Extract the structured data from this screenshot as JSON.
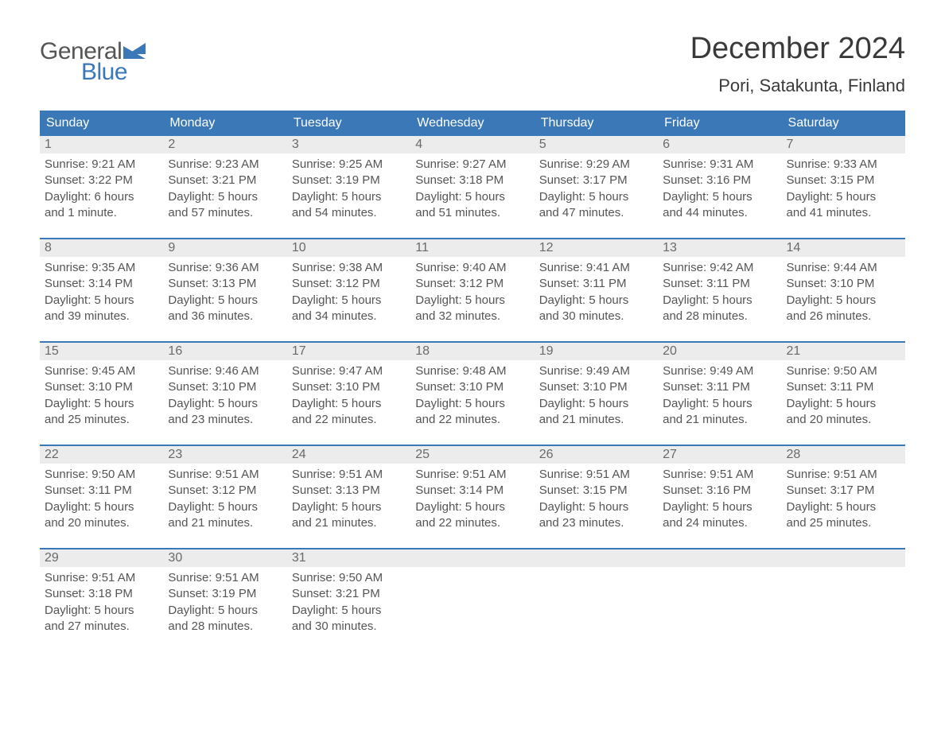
{
  "brand": {
    "general": "General",
    "blue": "Blue",
    "accent_color": "#3b78b8",
    "text_color": "#555555"
  },
  "header": {
    "month_title": "December 2024",
    "location": "Pori, Satakunta, Finland"
  },
  "calendar": {
    "weekday_bg": "#3b78b8",
    "daynum_bg": "#ececec",
    "weekdays": [
      "Sunday",
      "Monday",
      "Tuesday",
      "Wednesday",
      "Thursday",
      "Friday",
      "Saturday"
    ],
    "weeks": [
      [
        {
          "n": "1",
          "sunrise": "Sunrise: 9:21 AM",
          "sunset": "Sunset: 3:22 PM",
          "dl1": "Daylight: 6 hours",
          "dl2": "and 1 minute."
        },
        {
          "n": "2",
          "sunrise": "Sunrise: 9:23 AM",
          "sunset": "Sunset: 3:21 PM",
          "dl1": "Daylight: 5 hours",
          "dl2": "and 57 minutes."
        },
        {
          "n": "3",
          "sunrise": "Sunrise: 9:25 AM",
          "sunset": "Sunset: 3:19 PM",
          "dl1": "Daylight: 5 hours",
          "dl2": "and 54 minutes."
        },
        {
          "n": "4",
          "sunrise": "Sunrise: 9:27 AM",
          "sunset": "Sunset: 3:18 PM",
          "dl1": "Daylight: 5 hours",
          "dl2": "and 51 minutes."
        },
        {
          "n": "5",
          "sunrise": "Sunrise: 9:29 AM",
          "sunset": "Sunset: 3:17 PM",
          "dl1": "Daylight: 5 hours",
          "dl2": "and 47 minutes."
        },
        {
          "n": "6",
          "sunrise": "Sunrise: 9:31 AM",
          "sunset": "Sunset: 3:16 PM",
          "dl1": "Daylight: 5 hours",
          "dl2": "and 44 minutes."
        },
        {
          "n": "7",
          "sunrise": "Sunrise: 9:33 AM",
          "sunset": "Sunset: 3:15 PM",
          "dl1": "Daylight: 5 hours",
          "dl2": "and 41 minutes."
        }
      ],
      [
        {
          "n": "8",
          "sunrise": "Sunrise: 9:35 AM",
          "sunset": "Sunset: 3:14 PM",
          "dl1": "Daylight: 5 hours",
          "dl2": "and 39 minutes."
        },
        {
          "n": "9",
          "sunrise": "Sunrise: 9:36 AM",
          "sunset": "Sunset: 3:13 PM",
          "dl1": "Daylight: 5 hours",
          "dl2": "and 36 minutes."
        },
        {
          "n": "10",
          "sunrise": "Sunrise: 9:38 AM",
          "sunset": "Sunset: 3:12 PM",
          "dl1": "Daylight: 5 hours",
          "dl2": "and 34 minutes."
        },
        {
          "n": "11",
          "sunrise": "Sunrise: 9:40 AM",
          "sunset": "Sunset: 3:12 PM",
          "dl1": "Daylight: 5 hours",
          "dl2": "and 32 minutes."
        },
        {
          "n": "12",
          "sunrise": "Sunrise: 9:41 AM",
          "sunset": "Sunset: 3:11 PM",
          "dl1": "Daylight: 5 hours",
          "dl2": "and 30 minutes."
        },
        {
          "n": "13",
          "sunrise": "Sunrise: 9:42 AM",
          "sunset": "Sunset: 3:11 PM",
          "dl1": "Daylight: 5 hours",
          "dl2": "and 28 minutes."
        },
        {
          "n": "14",
          "sunrise": "Sunrise: 9:44 AM",
          "sunset": "Sunset: 3:10 PM",
          "dl1": "Daylight: 5 hours",
          "dl2": "and 26 minutes."
        }
      ],
      [
        {
          "n": "15",
          "sunrise": "Sunrise: 9:45 AM",
          "sunset": "Sunset: 3:10 PM",
          "dl1": "Daylight: 5 hours",
          "dl2": "and 25 minutes."
        },
        {
          "n": "16",
          "sunrise": "Sunrise: 9:46 AM",
          "sunset": "Sunset: 3:10 PM",
          "dl1": "Daylight: 5 hours",
          "dl2": "and 23 minutes."
        },
        {
          "n": "17",
          "sunrise": "Sunrise: 9:47 AM",
          "sunset": "Sunset: 3:10 PM",
          "dl1": "Daylight: 5 hours",
          "dl2": "and 22 minutes."
        },
        {
          "n": "18",
          "sunrise": "Sunrise: 9:48 AM",
          "sunset": "Sunset: 3:10 PM",
          "dl1": "Daylight: 5 hours",
          "dl2": "and 22 minutes."
        },
        {
          "n": "19",
          "sunrise": "Sunrise: 9:49 AM",
          "sunset": "Sunset: 3:10 PM",
          "dl1": "Daylight: 5 hours",
          "dl2": "and 21 minutes."
        },
        {
          "n": "20",
          "sunrise": "Sunrise: 9:49 AM",
          "sunset": "Sunset: 3:11 PM",
          "dl1": "Daylight: 5 hours",
          "dl2": "and 21 minutes."
        },
        {
          "n": "21",
          "sunrise": "Sunrise: 9:50 AM",
          "sunset": "Sunset: 3:11 PM",
          "dl1": "Daylight: 5 hours",
          "dl2": "and 20 minutes."
        }
      ],
      [
        {
          "n": "22",
          "sunrise": "Sunrise: 9:50 AM",
          "sunset": "Sunset: 3:11 PM",
          "dl1": "Daylight: 5 hours",
          "dl2": "and 20 minutes."
        },
        {
          "n": "23",
          "sunrise": "Sunrise: 9:51 AM",
          "sunset": "Sunset: 3:12 PM",
          "dl1": "Daylight: 5 hours",
          "dl2": "and 21 minutes."
        },
        {
          "n": "24",
          "sunrise": "Sunrise: 9:51 AM",
          "sunset": "Sunset: 3:13 PM",
          "dl1": "Daylight: 5 hours",
          "dl2": "and 21 minutes."
        },
        {
          "n": "25",
          "sunrise": "Sunrise: 9:51 AM",
          "sunset": "Sunset: 3:14 PM",
          "dl1": "Daylight: 5 hours",
          "dl2": "and 22 minutes."
        },
        {
          "n": "26",
          "sunrise": "Sunrise: 9:51 AM",
          "sunset": "Sunset: 3:15 PM",
          "dl1": "Daylight: 5 hours",
          "dl2": "and 23 minutes."
        },
        {
          "n": "27",
          "sunrise": "Sunrise: 9:51 AM",
          "sunset": "Sunset: 3:16 PM",
          "dl1": "Daylight: 5 hours",
          "dl2": "and 24 minutes."
        },
        {
          "n": "28",
          "sunrise": "Sunrise: 9:51 AM",
          "sunset": "Sunset: 3:17 PM",
          "dl1": "Daylight: 5 hours",
          "dl2": "and 25 minutes."
        }
      ],
      [
        {
          "n": "29",
          "sunrise": "Sunrise: 9:51 AM",
          "sunset": "Sunset: 3:18 PM",
          "dl1": "Daylight: 5 hours",
          "dl2": "and 27 minutes."
        },
        {
          "n": "30",
          "sunrise": "Sunrise: 9:51 AM",
          "sunset": "Sunset: 3:19 PM",
          "dl1": "Daylight: 5 hours",
          "dl2": "and 28 minutes."
        },
        {
          "n": "31",
          "sunrise": "Sunrise: 9:50 AM",
          "sunset": "Sunset: 3:21 PM",
          "dl1": "Daylight: 5 hours",
          "dl2": "and 30 minutes."
        },
        {
          "empty": true
        },
        {
          "empty": true
        },
        {
          "empty": true
        },
        {
          "empty": true
        }
      ]
    ]
  }
}
